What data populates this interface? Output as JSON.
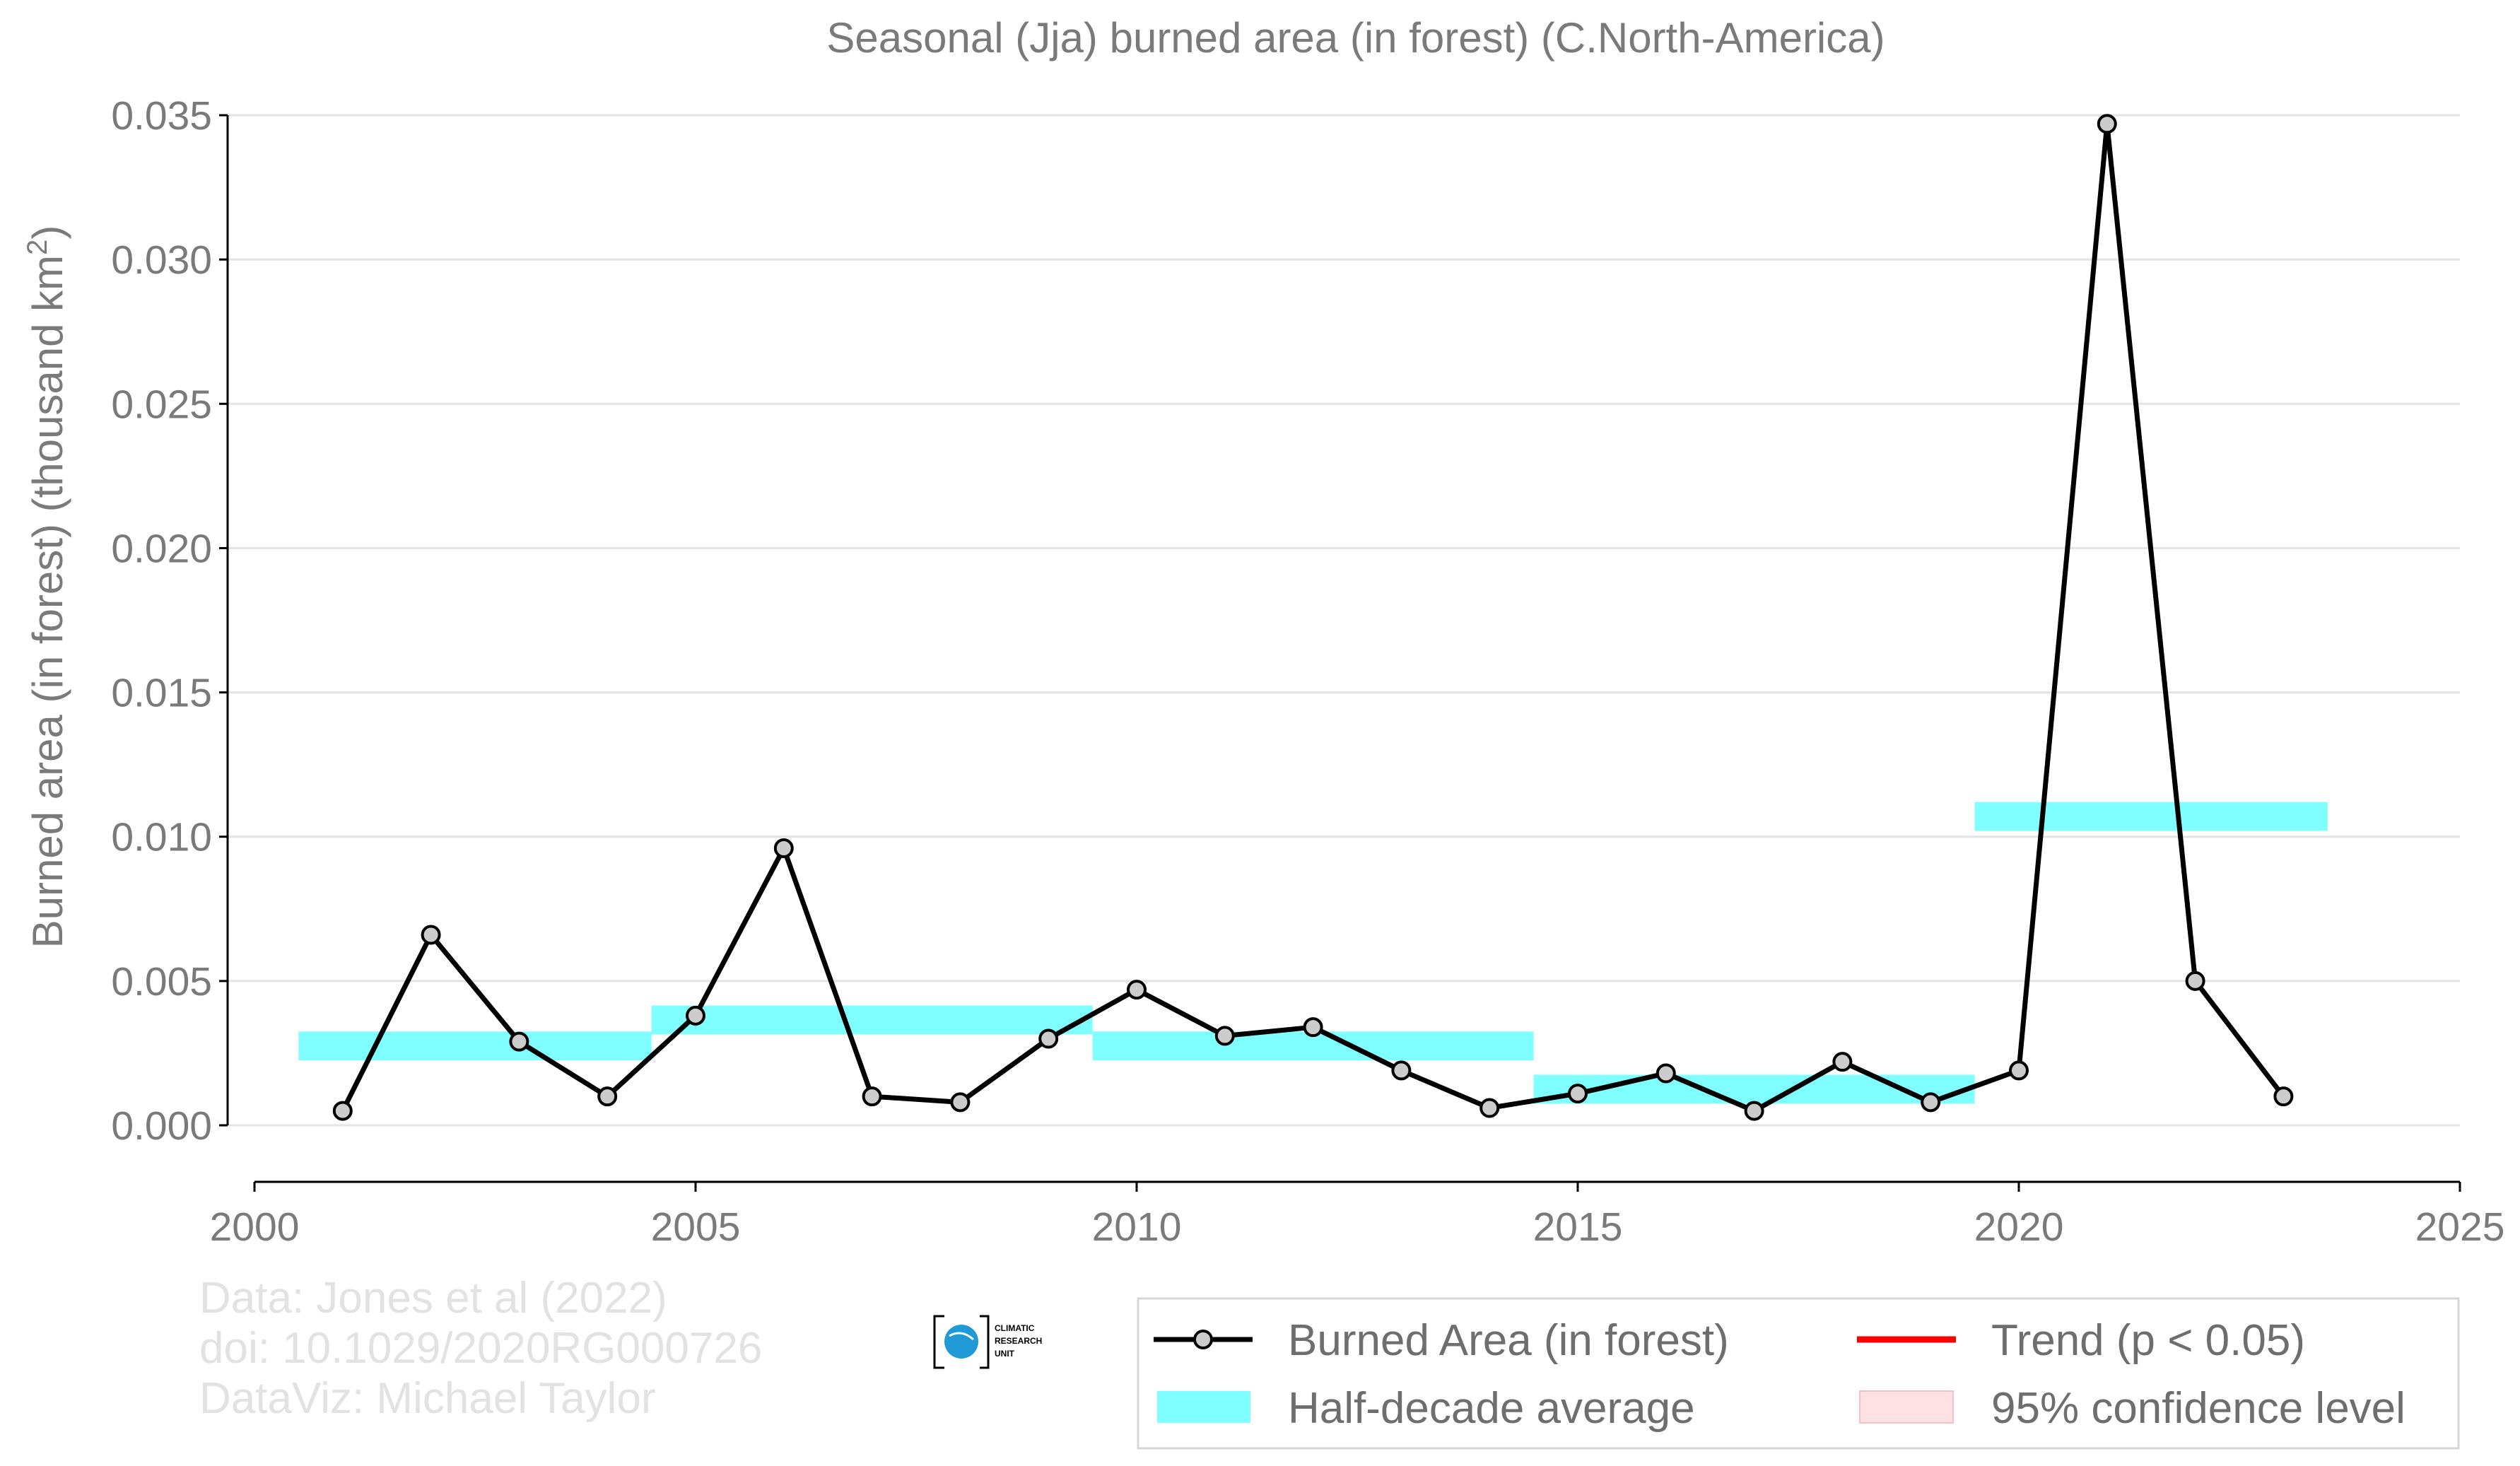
{
  "chart_data": {
    "type": "line",
    "title": "Seasonal (Jja) burned area (in forest) (C.North-America)",
    "xlabel": "",
    "ylabel": "Burned area (in forest) (thousand km",
    "ylabel_sup": "2",
    "ylabel_close": ")",
    "xlim": [
      2000,
      2025
    ],
    "ylim": [
      -0.002,
      0.035
    ],
    "xticks": [
      2000,
      2005,
      2010,
      2015,
      2020,
      2025
    ],
    "yticks": [
      0.0,
      0.005,
      0.01,
      0.015,
      0.02,
      0.025,
      0.03,
      0.035
    ],
    "ytick_labels": [
      "0.000",
      "0.005",
      "0.010",
      "0.015",
      "0.020",
      "0.025",
      "0.030",
      "0.035"
    ],
    "grid": "horizontal",
    "series": [
      {
        "name": "Burned Area (in forest)",
        "color": "#000000",
        "x": [
          2001,
          2002,
          2003,
          2004,
          2005,
          2006,
          2007,
          2008,
          2009,
          2010,
          2011,
          2012,
          2013,
          2014,
          2015,
          2016,
          2017,
          2018,
          2019,
          2020,
          2021,
          2022,
          2023
        ],
        "y": [
          0.0005,
          0.0066,
          0.0029,
          0.001,
          0.0038,
          0.0096,
          0.001,
          0.0008,
          0.003,
          0.0047,
          0.0031,
          0.0034,
          0.0019,
          0.0006,
          0.0011,
          0.0018,
          0.0005,
          0.0022,
          0.0008,
          0.0019,
          0.0347,
          0.005,
          0.001
        ]
      }
    ],
    "half_decade_average": {
      "name": "Half-decade average",
      "color": "#7fffff",
      "segments": [
        {
          "x0": 2000.5,
          "x1": 2004.5,
          "y": 0.00275
        },
        {
          "x0": 2004.5,
          "x1": 2009.5,
          "y": 0.00365
        },
        {
          "x0": 2009.5,
          "x1": 2014.5,
          "y": 0.00275
        },
        {
          "x0": 2014.5,
          "x1": 2019.5,
          "y": 0.00125
        },
        {
          "x0": 2019.5,
          "x1": 2023.5,
          "y": 0.0107
        }
      ]
    },
    "legend": {
      "placement": "bottom-right",
      "entries": [
        {
          "label": "Burned Area (in forest)",
          "kind": "line-marker",
          "color": "#000000"
        },
        {
          "label": "Trend (p < 0.05)",
          "kind": "line",
          "color": "#ff0000"
        },
        {
          "label": "Half-decade average",
          "kind": "band",
          "color": "#7fffff"
        },
        {
          "label": "95% confidence level",
          "kind": "band",
          "color": "#ffe0e3"
        }
      ]
    }
  },
  "credits": {
    "line1": "Data: Jones et al (2022)",
    "line2": "doi: 10.1029/2020RG000726",
    "line3": "DataViz: Michael Taylor"
  },
  "logo": {
    "line1": "CLIMATIC",
    "line2": "RESEARCH",
    "line3": "UNIT"
  }
}
